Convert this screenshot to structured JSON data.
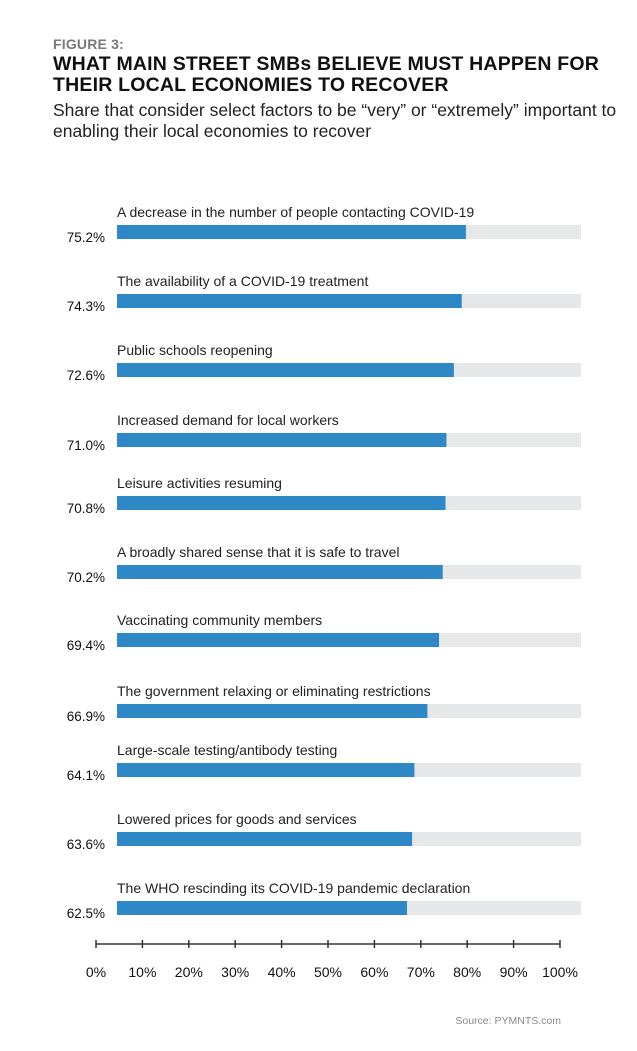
{
  "header": {
    "figure_label": "FIGURE 3:",
    "title": "WHAT MAIN STREET SMBs BELIEVE MUST HAPPEN FOR THEIR LOCAL ECONOMIES TO RECOVER",
    "subtitle": "Share that consider select factors to be “very” or “extremely” important to enabling their local economies to recover"
  },
  "colors": {
    "bar": "#2e88c6",
    "track": "#e6e7e9",
    "axis": "#333333"
  },
  "source": "Source: PYMNTS.com",
  "chart_data": {
    "type": "bar",
    "orientation": "horizontal",
    "title": "WHAT MAIN STREET SMBs BELIEVE MUST HAPPEN FOR THEIR LOCAL ECONOMIES TO RECOVER",
    "subtitle": "Share that consider select factors to be “very” or “extremely” important to enabling their local economies to recover",
    "xlabel": "",
    "ylabel": "",
    "xlim": [
      0,
      100
    ],
    "grid": false,
    "categories": [
      "A decrease in the number of people contacting COVID-19",
      "The availability of a COVID-19 treatment",
      "Public schools reopening",
      "Increased demand for local workers",
      "Leisure activities resuming",
      "A broadly shared sense that it is safe to travel",
      "Vaccinating community members",
      "The government relaxing or eliminating restrictions",
      "Large-scale testing/antibody testing",
      "Lowered prices for goods and services",
      "The WHO rescinding its COVID-19 pandemic declaration"
    ],
    "values": [
      75.2,
      74.3,
      72.6,
      71.0,
      70.8,
      70.2,
      69.4,
      66.9,
      64.1,
      63.6,
      62.5
    ],
    "value_labels": [
      "75.2%",
      "74.3%",
      "72.6%",
      "71.0%",
      "70.8%",
      "70.2%",
      "69.4%",
      "66.9%",
      "64.1%",
      "63.6%",
      "62.5%"
    ],
    "x_ticks": [
      0,
      10,
      20,
      30,
      40,
      50,
      60,
      70,
      80,
      90,
      100
    ],
    "x_tick_labels": [
      "0%",
      "10%",
      "20%",
      "30%",
      "40%",
      "50%",
      "60%",
      "70%",
      "80%",
      "90%",
      "100%"
    ],
    "source": "Source: PYMNTS.com"
  }
}
